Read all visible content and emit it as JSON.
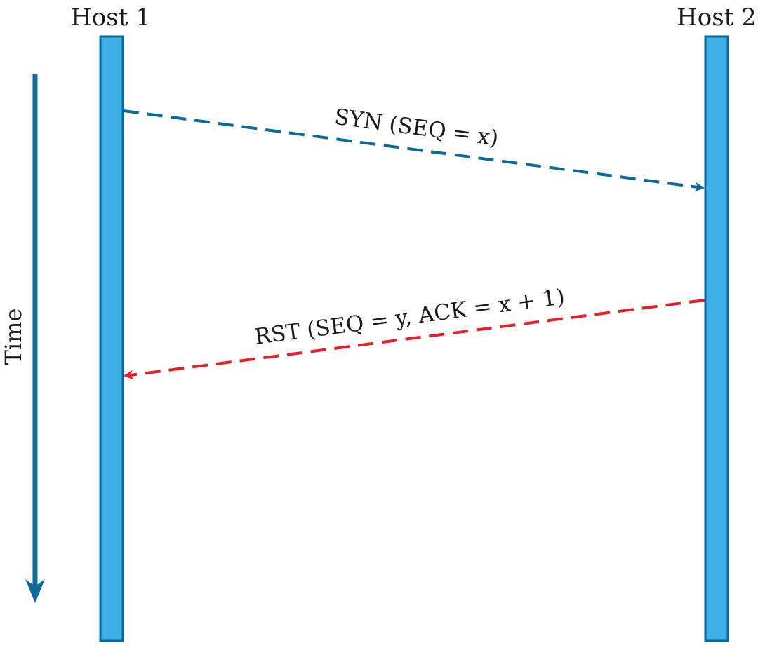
{
  "hosts": [
    {
      "label": "Host 1"
    },
    {
      "label": "Host 2"
    }
  ],
  "time_axis": {
    "label": "Time"
  },
  "messages": [
    {
      "label": "SYN (SEQ = x)",
      "from": "Host 1",
      "to": "Host 2",
      "style": "dashed"
    },
    {
      "label": "RST (SEQ = y, ACK = x + 1)",
      "from": "Host 2",
      "to": "Host 1",
      "style": "dashed"
    }
  ],
  "colors": {
    "host_bar_fill": "#3daee6",
    "host_bar_stroke": "#0b6a9a",
    "syn_arrow": "#0b6a9a",
    "rst_arrow": "#e3202a",
    "time_arrow": "#0b6a9a",
    "text": "#1a1a1a"
  }
}
